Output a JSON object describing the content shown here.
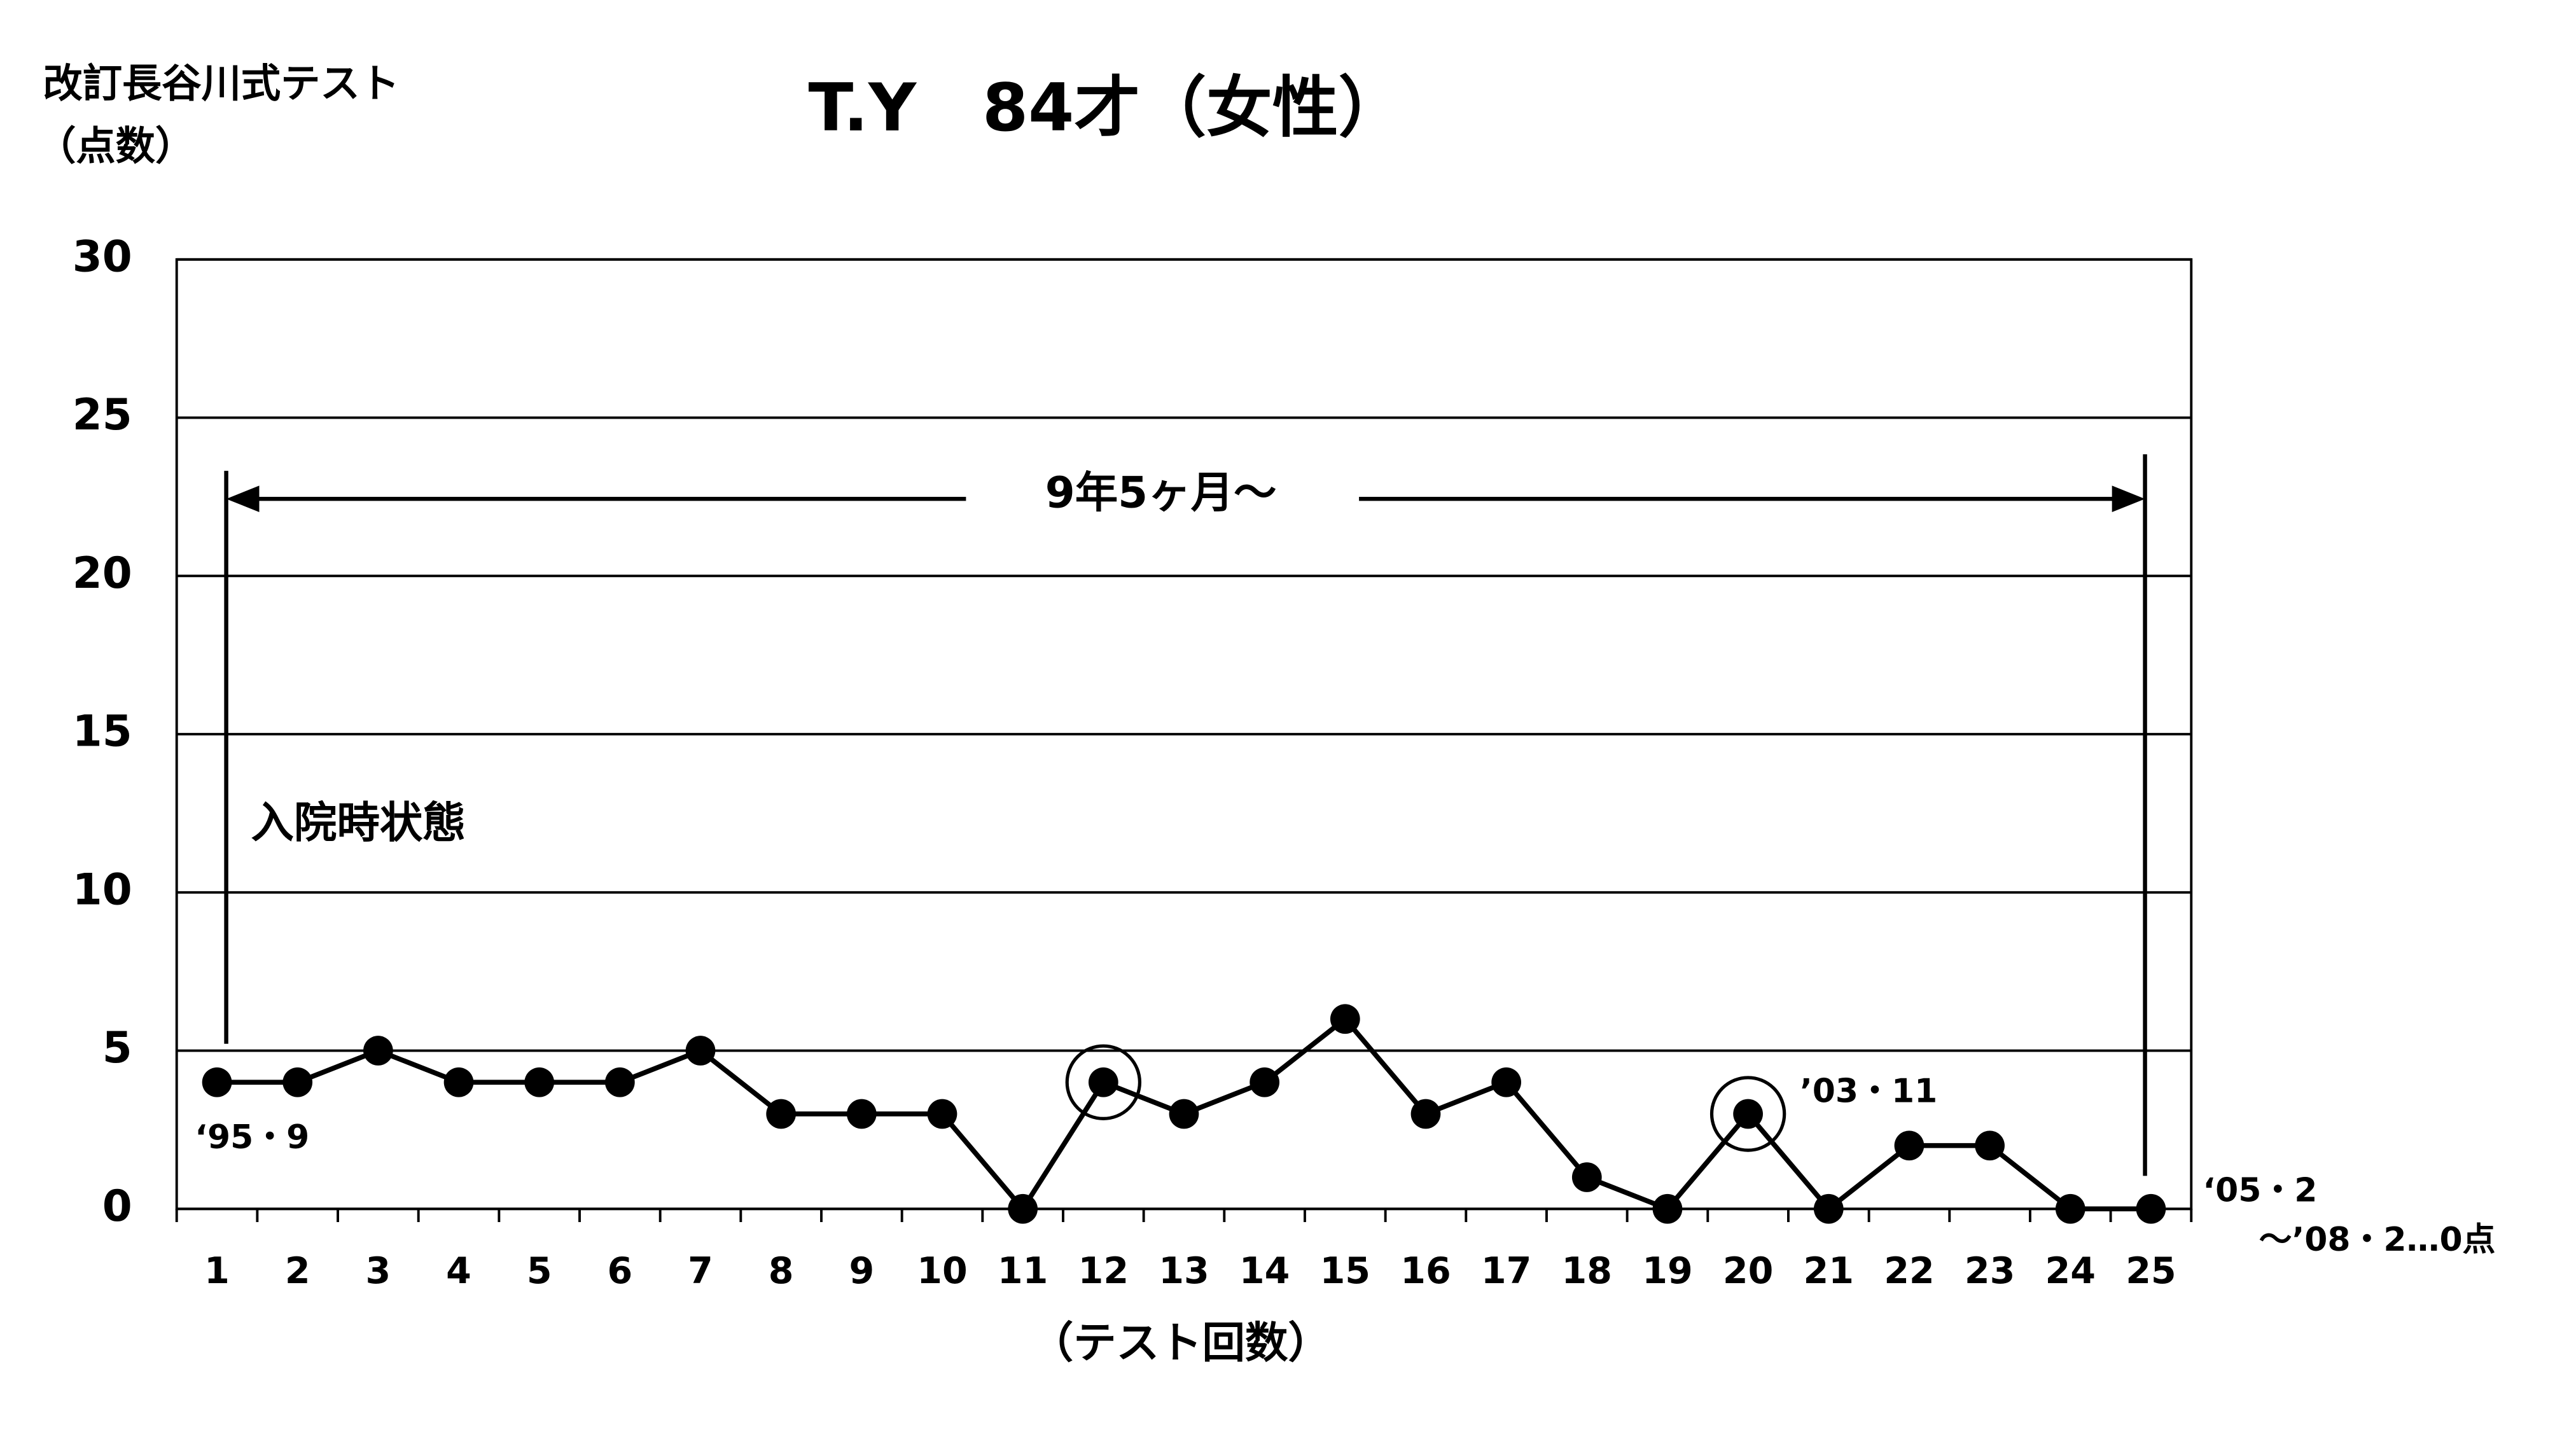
{
  "chart_data": {
    "type": "line",
    "title": "T.Y　84才（女性）",
    "y_label": [
      "改訂長谷川式テスト",
      "（点数）"
    ],
    "x_label": "（テスト回数）",
    "categories": [
      "1",
      "2",
      "3",
      "4",
      "5",
      "6",
      "7",
      "8",
      "9",
      "10",
      "11",
      "12",
      "13",
      "14",
      "15",
      "16",
      "17",
      "18",
      "19",
      "20",
      "21",
      "22",
      "23",
      "24",
      "25"
    ],
    "values": [
      4,
      4,
      5,
      4,
      4,
      4,
      5,
      3,
      3,
      3,
      0,
      4,
      3,
      4,
      6,
      3,
      4,
      1,
      0,
      3,
      0,
      2,
      2,
      0,
      0
    ],
    "color": "#000000",
    "ylim": [
      0,
      30
    ],
    "yticks": [
      0,
      5,
      10,
      15,
      20,
      25,
      30
    ],
    "grid": true,
    "annotations": {
      "period": "9年5ヶ月～",
      "admission": "入院時状態",
      "start": "‘95・9",
      "mark": "’03・11",
      "end": [
        "‘05・2",
        "～’08・2…0点"
      ]
    }
  }
}
